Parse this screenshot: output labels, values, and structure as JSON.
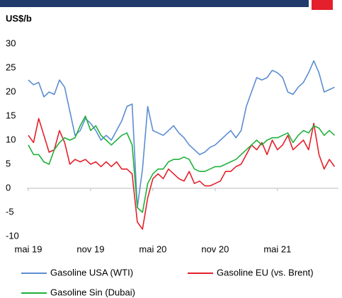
{
  "chart_data": {
    "type": "line",
    "y_axis_label": "US$/b",
    "categories": [
      "mai 19",
      null,
      null,
      null,
      null,
      null,
      null,
      null,
      null,
      null,
      null,
      null,
      "nov 19",
      null,
      null,
      null,
      null,
      null,
      null,
      null,
      null,
      null,
      null,
      null,
      "mai 20",
      null,
      null,
      null,
      null,
      null,
      null,
      null,
      null,
      null,
      null,
      null,
      "nov 20",
      null,
      null,
      null,
      null,
      null,
      null,
      null,
      null,
      null,
      null,
      null,
      "mai 21",
      null,
      null,
      null,
      null,
      null,
      null,
      null,
      null,
      null,
      null,
      null
    ],
    "series": [
      {
        "name": "Gasoline USA (WTI)",
        "color": "#5b8dd2",
        "values": [
          22.5,
          21.5,
          22,
          19,
          20,
          19.5,
          22.5,
          21,
          16,
          11,
          12,
          14.5,
          13.5,
          12,
          10,
          11,
          10,
          12,
          14,
          17,
          17.5,
          -4,
          4,
          17,
          12,
          11.5,
          11,
          12,
          13,
          11.5,
          10.5,
          9,
          8,
          7,
          7.5,
          8.5,
          9,
          10,
          11,
          12,
          10.5,
          12,
          17,
          20,
          23,
          22.5,
          23,
          24.5,
          24,
          23,
          20,
          19.5,
          21,
          22,
          24,
          26.5,
          24,
          20,
          20.5,
          21
        ]
      },
      {
        "name": "Gasoline EU (vs. Brent)",
        "color": "#e3202b",
        "values": [
          11,
          9.5,
          14.5,
          11,
          7.5,
          8,
          12,
          9.5,
          5,
          6,
          5.5,
          6,
          5,
          5.5,
          4.5,
          5.5,
          4.5,
          5.5,
          4,
          4,
          3,
          -7,
          -8.5,
          -2,
          2,
          3,
          2,
          4,
          3,
          2,
          1.5,
          3.5,
          1,
          1.5,
          0.5,
          0.5,
          1,
          1.5,
          3.5,
          3.5,
          4.5,
          5,
          7,
          9,
          8,
          9.5,
          7,
          10,
          8,
          9,
          11,
          8,
          9,
          10,
          8,
          13.5,
          7,
          4,
          6,
          4.5
        ]
      },
      {
        "name": "Gasoline Sin (Dubai)",
        "color": "#1fb13a",
        "values": [
          9,
          7,
          7,
          5.5,
          5,
          8,
          9.5,
          10.5,
          10,
          10.5,
          13,
          15,
          12,
          13,
          11,
          10,
          9,
          10,
          11,
          11.5,
          9,
          -4,
          -5,
          1,
          3,
          4,
          4,
          5.5,
          6,
          6,
          6.5,
          6,
          4,
          3.5,
          3.5,
          4,
          4.5,
          4.5,
          5,
          5.5,
          6,
          7,
          8,
          9,
          10,
          9,
          10,
          10.5,
          10.5,
          11,
          11.5,
          9.5,
          11,
          12,
          11.5,
          13,
          12.5,
          11,
          12,
          11
        ]
      }
    ],
    "ylim": [
      -10,
      30
    ],
    "yticks": [
      -10,
      -5,
      0,
      5,
      10,
      15,
      20,
      25,
      30
    ]
  }
}
